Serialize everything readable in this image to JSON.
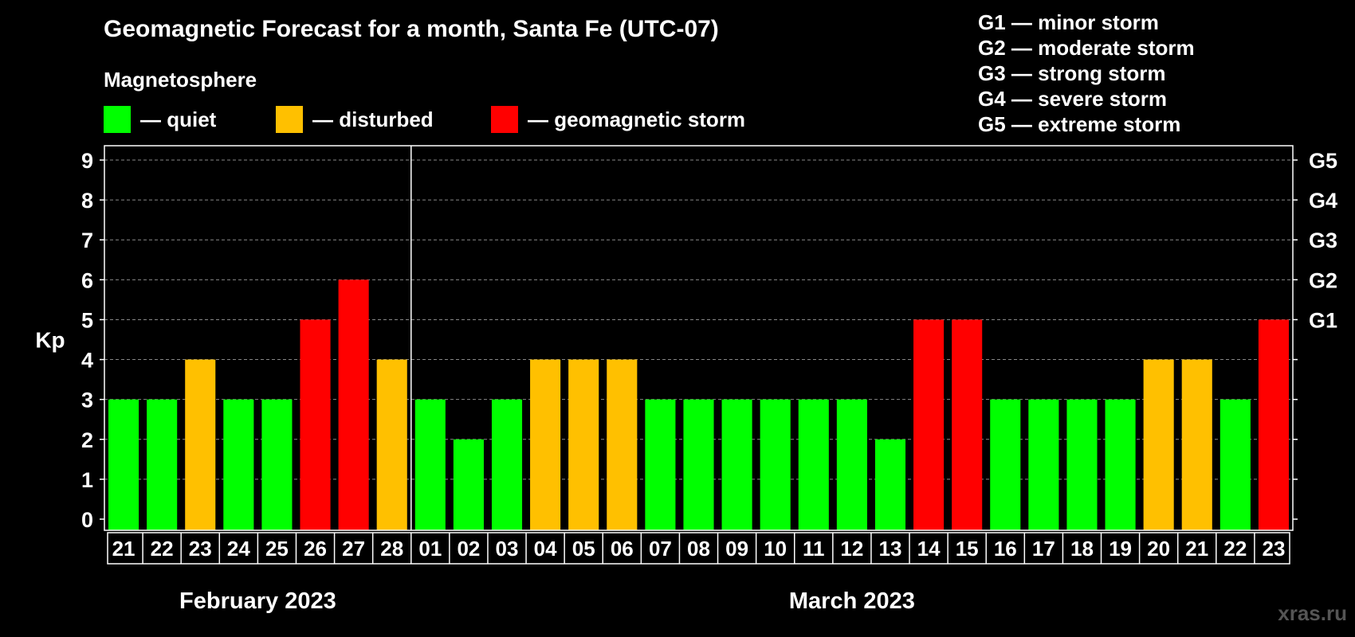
{
  "title": "Geomagnetic Forecast for a month, Santa Fe (UTC-07)",
  "legend": {
    "heading": "Magnetosphere",
    "items": [
      {
        "label": "— quiet",
        "color": "#00ff00"
      },
      {
        "label": "— disturbed",
        "color": "#ffc000"
      },
      {
        "label": "— geomagnetic storm",
        "color": "#ff0000"
      }
    ]
  },
  "storm_scale": [
    "G1 — minor storm",
    "G2 — moderate storm",
    "G3 — strong storm",
    "G4 — severe storm",
    "G5 — extreme storm"
  ],
  "watermark": "xras.ru",
  "chart_data": {
    "type": "bar",
    "ylabel": "Kp",
    "ylim": [
      0,
      9
    ],
    "yticks": [
      0,
      1,
      2,
      3,
      4,
      5,
      6,
      7,
      8,
      9
    ],
    "right_axis_labels": [
      {
        "kp": 5,
        "label": "G1"
      },
      {
        "kp": 6,
        "label": "G2"
      },
      {
        "kp": 7,
        "label": "G3"
      },
      {
        "kp": 8,
        "label": "G4"
      },
      {
        "kp": 9,
        "label": "G5"
      }
    ],
    "grid": "dashed horizontal",
    "categories": [
      "21",
      "22",
      "23",
      "24",
      "25",
      "26",
      "27",
      "28",
      "01",
      "02",
      "03",
      "04",
      "05",
      "06",
      "07",
      "08",
      "09",
      "10",
      "11",
      "12",
      "13",
      "14",
      "15",
      "16",
      "17",
      "18",
      "19",
      "20",
      "21",
      "22",
      "23"
    ],
    "values": [
      3,
      3,
      4,
      3,
      3,
      5,
      6,
      4,
      3,
      2,
      3,
      4,
      4,
      4,
      3,
      3,
      3,
      3,
      3,
      3,
      2,
      5,
      5,
      3,
      3,
      3,
      3,
      4,
      4,
      3,
      5
    ],
    "months": [
      {
        "label": "February 2023",
        "start_index": 0,
        "end_index": 7
      },
      {
        "label": "March 2023",
        "start_index": 8,
        "end_index": 30
      }
    ],
    "color_rule": {
      "quiet": "Kp <= 3",
      "disturbed": "Kp = 4",
      "storm": "Kp >= 5"
    }
  }
}
